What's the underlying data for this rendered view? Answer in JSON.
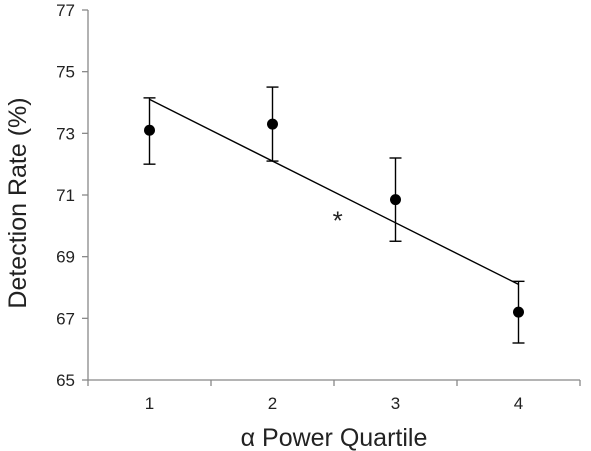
{
  "chart_data": {
    "type": "scatter",
    "xlabel": "α Power Quartile",
    "ylabel": "Detection Rate (%)",
    "x": [
      1,
      2,
      3,
      4
    ],
    "x_tick_labels": [
      "1",
      "2",
      "3",
      "4"
    ],
    "y_tick_labels": [
      "65",
      "67",
      "69",
      "71",
      "73",
      "75",
      "77"
    ],
    "xlim": [
      0.5,
      4.5
    ],
    "ylim": [
      65,
      77
    ],
    "y_ticks": [
      65,
      67,
      69,
      71,
      73,
      75,
      77
    ],
    "series": [
      {
        "values": [
          73.1,
          73.3,
          70.85,
          67.2
        ],
        "error_upper": [
          74.15,
          74.5,
          72.2,
          68.2
        ],
        "error_lower": [
          72.0,
          72.1,
          69.5,
          66.2
        ]
      }
    ],
    "trendline": {
      "x": [
        1,
        4
      ],
      "y": [
        74.1,
        68.1
      ]
    },
    "annotations": [
      {
        "text": "*",
        "x": 2.53,
        "y": 70.4
      }
    ],
    "grid": false,
    "legend": "none",
    "colors": {
      "marker": "#000000",
      "line": "#000000",
      "axis": "#888888",
      "text": "#222222"
    }
  }
}
